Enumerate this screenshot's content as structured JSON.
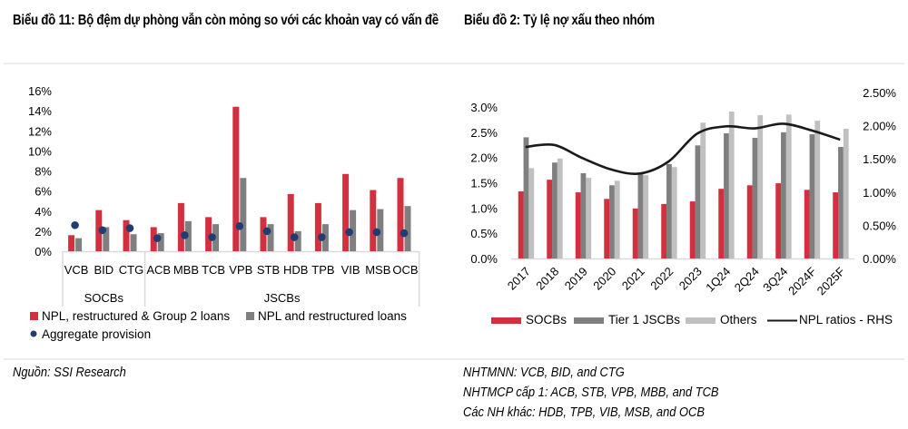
{
  "titles": {
    "left": "Biểu đồ 11: Bộ đệm dự phòng vẫn còn mỏng so với các khoản vay có vấn đề",
    "right": "Biểu đồ 2: Tỷ lệ nợ xấu theo nhóm"
  },
  "footer": {
    "source": "Nguồn: SSI Research",
    "notes": [
      "NHTMNN: VCB, BID, and CTG",
      "NHTMCP cấp 1: ACB, STB, VPB, MBB, and TCB",
      "Các NH khác: HDB, TPB, VIB, MSB, and OCB"
    ]
  },
  "colors": {
    "red": "#d32f3f",
    "dark_gray": "#7f7f7f",
    "light_gray": "#c0c0c0",
    "navy": "#1f3d73",
    "line": "#1a1a1a"
  },
  "chart_data": [
    {
      "type": "bar",
      "title": "Biểu đồ 11: Bộ đệm dự phòng vẫn còn mỏng so với các khoản vay có vấn đề",
      "categories": [
        "VCB",
        "BID",
        "CTG",
        "ACB",
        "MBB",
        "TCB",
        "VPB",
        "STB",
        "HDB",
        "TPB",
        "VIB",
        "MSB",
        "OCB"
      ],
      "groups": [
        {
          "label": "SOCBs",
          "members": [
            "VCB",
            "BID",
            "CTG"
          ]
        },
        {
          "label": "JSCBs",
          "members": [
            "ACB",
            "MBB",
            "TCB",
            "VPB",
            "STB",
            "HDB",
            "TPB",
            "VIB",
            "MSB",
            "OCB"
          ]
        }
      ],
      "series": [
        {
          "name": "NPL, restructured & Group 2 loans",
          "kind": "bar",
          "color": "#d32f3f",
          "values": [
            1.6,
            4.1,
            3.1,
            2.4,
            4.8,
            3.4,
            14.4,
            3.4,
            5.7,
            4.8,
            7.7,
            6.1,
            7.3
          ]
        },
        {
          "name": "NPL and restructured loans",
          "kind": "bar",
          "color": "#7f7f7f",
          "values": [
            1.3,
            2.4,
            1.7,
            1.8,
            3.0,
            2.7,
            7.3,
            2.7,
            2.0,
            2.7,
            4.1,
            4.2,
            4.5
          ]
        },
        {
          "name": "Aggregate provision",
          "kind": "dot",
          "color": "#1f3d73",
          "values": [
            2.6,
            2.1,
            2.3,
            1.3,
            1.6,
            1.4,
            2.5,
            2.0,
            1.4,
            1.4,
            1.9,
            1.9,
            1.8
          ]
        }
      ],
      "yticks": [
        "0%",
        "2%",
        "4%",
        "6%",
        "8%",
        "10%",
        "12%",
        "14%",
        "16%"
      ],
      "ylim": [
        0,
        16
      ],
      "xlabel": "",
      "ylabel": "",
      "legend": "bottom",
      "grid": false
    },
    {
      "type": "bar",
      "title": "Biểu đồ 2: Tỷ lệ nợ xấu theo nhóm",
      "categories": [
        "2017",
        "2018",
        "2019",
        "2020",
        "2021",
        "2022",
        "2023",
        "1Q24",
        "2Q24",
        "3Q24",
        "2024F",
        "2025F"
      ],
      "series": [
        {
          "name": "SOCBs",
          "kind": "bar",
          "axis": "left",
          "color": "#d32f3f",
          "values": [
            1.33,
            1.56,
            1.31,
            1.18,
            0.99,
            1.08,
            1.13,
            1.38,
            1.45,
            1.49,
            1.36,
            1.31
          ]
        },
        {
          "name": "Tier 1 JSCBs",
          "kind": "bar",
          "axis": "left",
          "color": "#7f7f7f",
          "values": [
            2.4,
            1.9,
            1.69,
            1.45,
            1.67,
            1.87,
            2.24,
            2.48,
            2.39,
            2.5,
            2.46,
            2.21
          ]
        },
        {
          "name": "Others",
          "kind": "bar",
          "axis": "left",
          "color": "#c0c0c0",
          "values": [
            1.79,
            1.98,
            1.6,
            1.54,
            1.65,
            1.81,
            2.69,
            2.91,
            2.84,
            2.85,
            2.73,
            2.57
          ]
        },
        {
          "name": "NPL ratios - RHS",
          "kind": "line",
          "axis": "right",
          "color": "#1a1a1a",
          "values": [
            1.68,
            1.71,
            1.51,
            1.34,
            1.28,
            1.46,
            1.88,
            1.99,
            1.96,
            2.03,
            1.93,
            1.79
          ]
        }
      ],
      "yticks_left": [
        "0.0%",
        "0.5%",
        "1.0%",
        "1.5%",
        "2.0%",
        "2.5%",
        "3.0%"
      ],
      "ylim_left": [
        0,
        3.0
      ],
      "yticks_right": [
        "0.00%",
        "0.50%",
        "1.00%",
        "1.50%",
        "2.00%",
        "2.50%"
      ],
      "ylim_right": [
        0,
        2.5
      ],
      "xlabel": "",
      "ylabel": "",
      "legend": "bottom",
      "grid": false
    }
  ]
}
